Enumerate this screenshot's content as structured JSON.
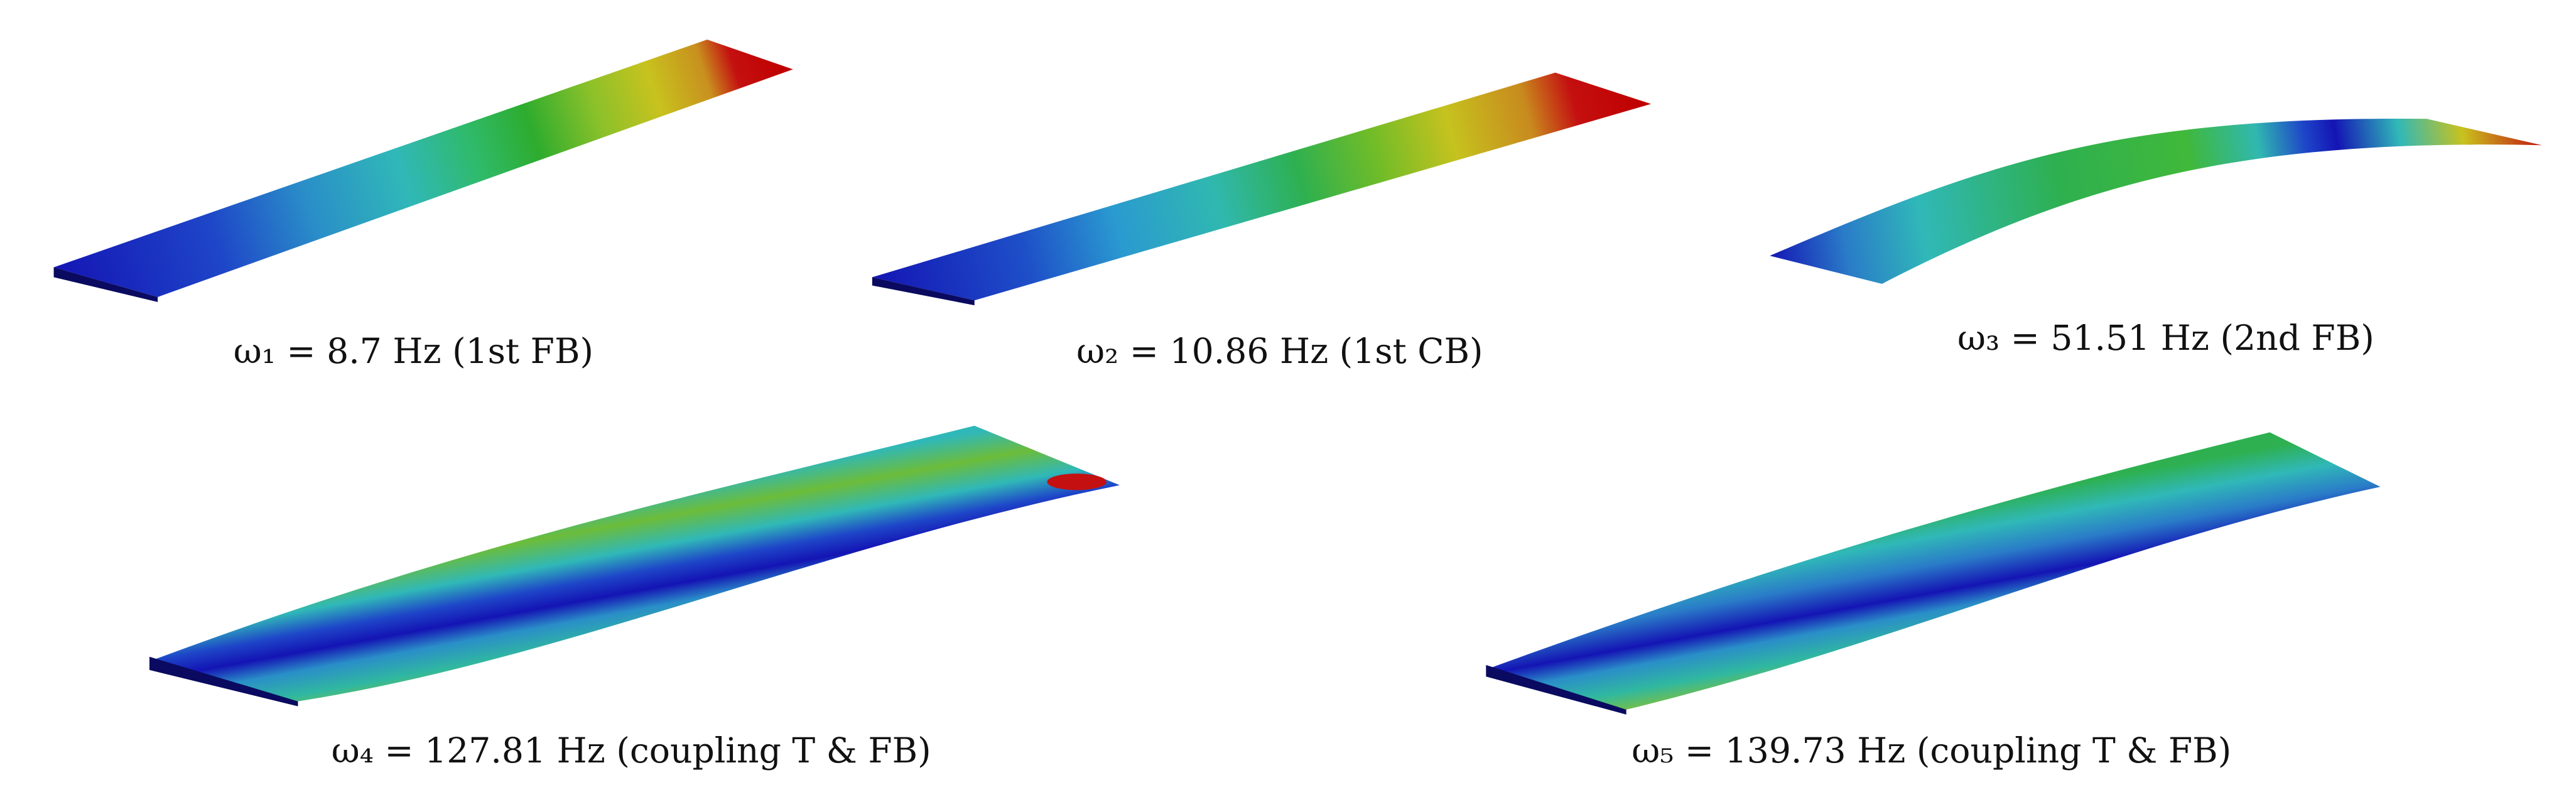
{
  "modes": [
    {
      "caption": "ω₁ =  8.7 Hz (1st FB)"
    },
    {
      "caption": "ω₂ =  10.86 Hz (1st CB)"
    },
    {
      "caption": "ω₃ =  51.51 Hz (2nd FB)"
    },
    {
      "caption": "ω₄ =  127.81 Hz (coupling T & FB)"
    },
    {
      "caption": "ω₅ =  139.73 Hz (coupling T & FB)"
    }
  ]
}
